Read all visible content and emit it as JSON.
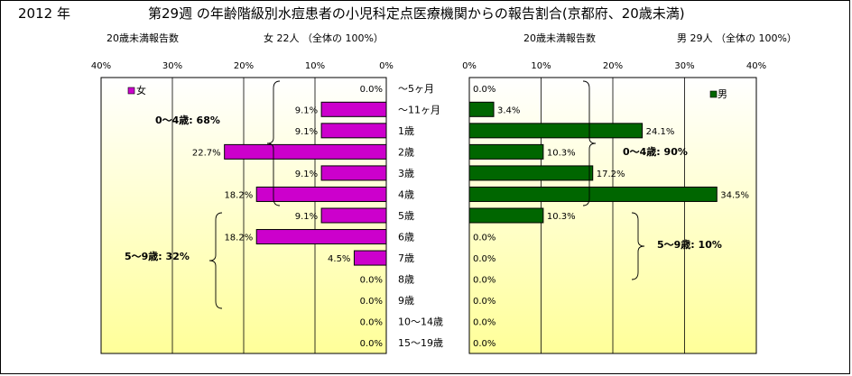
{
  "header": {
    "year": "2012 年",
    "title": "第29週 の年齢階級別水痘患者の小児科定点医療機関からの報告割合(京都府、20歳未満)"
  },
  "female_panel": {
    "subtitle_left": "20歳未満報告数",
    "subtitle_right": "女 22人 （全体の 100%）",
    "legend": "女",
    "group1_label": "0～4歳: 68%",
    "group2_label": "5～9歳: 32%"
  },
  "male_panel": {
    "subtitle_left": "20歳未満報告数",
    "subtitle_right": "男 29人 （全体の 100%）",
    "legend": "男",
    "group1_label": "0～4歳: 90%",
    "group2_label": "5～9歳: 10%"
  },
  "colors": {
    "female": "#cc00cc",
    "male": "#006600",
    "plot_bg_top": "#ffffff",
    "plot_bg_bottom": "#ffff99"
  },
  "chart_data": [
    {
      "type": "bar",
      "orientation": "horizontal",
      "direction": "right-to-left",
      "categories": [
        "～5ヶ月",
        "～11ヶ月",
        "1歳",
        "2歳",
        "3歳",
        "4歳",
        "5歳",
        "6歳",
        "7歳",
        "8歳",
        "9歳",
        "10～14歳",
        "15～19歳"
      ],
      "series": [
        {
          "name": "女",
          "values": [
            0.0,
            9.1,
            9.1,
            22.7,
            9.1,
            18.2,
            9.1,
            18.2,
            4.5,
            0.0,
            0.0,
            0.0,
            0.0
          ]
        }
      ],
      "data_labels": [
        "0.0%",
        "9.1%",
        "9.1%",
        "22.7%",
        "9.1%",
        "18.2%",
        "9.1%",
        "18.2%",
        "4.5%",
        "0.0%",
        "0.0%",
        "0.0%",
        "0.0%"
      ],
      "xlim": [
        0,
        40
      ],
      "ticks": [
        "40%",
        "30%",
        "20%",
        "10%",
        "0%"
      ],
      "grid": true,
      "legend_position": "top-left"
    },
    {
      "type": "bar",
      "orientation": "horizontal",
      "direction": "left-to-right",
      "categories": [
        "～5ヶ月",
        "～11ヶ月",
        "1歳",
        "2歳",
        "3歳",
        "4歳",
        "5歳",
        "6歳",
        "7歳",
        "8歳",
        "9歳",
        "10～14歳",
        "15～19歳"
      ],
      "series": [
        {
          "name": "男",
          "values": [
            0.0,
            3.4,
            24.1,
            10.3,
            17.2,
            34.5,
            10.3,
            0.0,
            0.0,
            0.0,
            0.0,
            0.0,
            0.0
          ]
        }
      ],
      "data_labels": [
        "0.0%",
        "3.4%",
        "24.1%",
        "10.3%",
        "17.2%",
        "34.5%",
        "10.3%",
        "0.0%",
        "0.0%",
        "0.0%",
        "0.0%",
        "0.0%",
        "0.0%"
      ],
      "xlim": [
        0,
        40
      ],
      "ticks": [
        "0%",
        "10%",
        "20%",
        "30%",
        "40%"
      ],
      "grid": true,
      "legend_position": "top-right"
    }
  ]
}
